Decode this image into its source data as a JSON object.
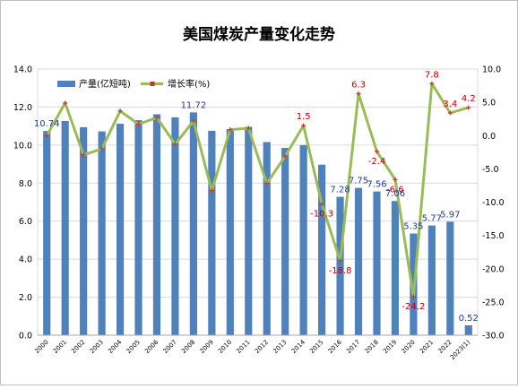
{
  "chart_data": {
    "type": "bar+line",
    "title": "美国煤炭产量变化走势",
    "categories": [
      "2000",
      "2001",
      "2002",
      "2003",
      "2004",
      "2005",
      "2006",
      "2007",
      "2008",
      "2009",
      "2010",
      "2011",
      "2012",
      "2013",
      "2014",
      "2015",
      "2016",
      "2017",
      "2018",
      "2019",
      "2020",
      "2021",
      "2022",
      "2023(1)"
    ],
    "series": [
      {
        "name": "产量(亿短吨)",
        "kind": "bar",
        "axis": "left",
        "color": "#4f81bd",
        "values": [
          10.74,
          11.27,
          10.94,
          10.72,
          11.12,
          11.31,
          11.62,
          11.46,
          11.72,
          10.75,
          10.84,
          10.96,
          10.16,
          9.85,
          10.0,
          8.97,
          7.28,
          7.75,
          7.56,
          7.06,
          5.35,
          5.77,
          5.97,
          0.52
        ]
      },
      {
        "name": "增长率(%)",
        "kind": "line",
        "axis": "right",
        "color": "#9bbb59",
        "marker_color": "#c0392b",
        "values": [
          0.0,
          4.9,
          -2.9,
          -2.0,
          3.7,
          1.7,
          2.7,
          -1.3,
          2.2,
          -8.3,
          0.9,
          1.1,
          -7.2,
          -3.1,
          1.5,
          -10.3,
          -18.8,
          6.3,
          -2.4,
          -6.6,
          -24.2,
          7.8,
          3.4,
          4.2
        ]
      }
    ],
    "bar_labels": [
      {
        "index": 0,
        "text": "10.74"
      },
      {
        "index": 8,
        "text": "11.72"
      },
      {
        "index": 16,
        "text": "7.28"
      },
      {
        "index": 17,
        "text": "7.75"
      },
      {
        "index": 18,
        "text": "7.56"
      },
      {
        "index": 19,
        "text": "7.06"
      },
      {
        "index": 20,
        "text": "5.35"
      },
      {
        "index": 21,
        "text": "5.77"
      },
      {
        "index": 22,
        "text": "5.97"
      },
      {
        "index": 23,
        "text": "0.52"
      }
    ],
    "line_labels": [
      {
        "index": 14,
        "text": "1.5"
      },
      {
        "index": 15,
        "text": "-10.3"
      },
      {
        "index": 16,
        "text": "-18.8"
      },
      {
        "index": 17,
        "text": "6.3"
      },
      {
        "index": 18,
        "text": "-2.4"
      },
      {
        "index": 19,
        "text": "-6.6"
      },
      {
        "index": 20,
        "text": "-24.2"
      },
      {
        "index": 21,
        "text": "7.8"
      },
      {
        "index": 22,
        "text": "3.4"
      },
      {
        "index": 23,
        "text": "4.2"
      }
    ],
    "left_axis": {
      "min": 0,
      "max": 14,
      "step": 2,
      "decimals": 1
    },
    "right_axis": {
      "min": -30,
      "max": 10,
      "step": 5,
      "decimals": 1
    },
    "grid": true,
    "legend_position": "top-left",
    "bar_label_color": "#1f3c99",
    "line_label_color": "#c00000"
  }
}
